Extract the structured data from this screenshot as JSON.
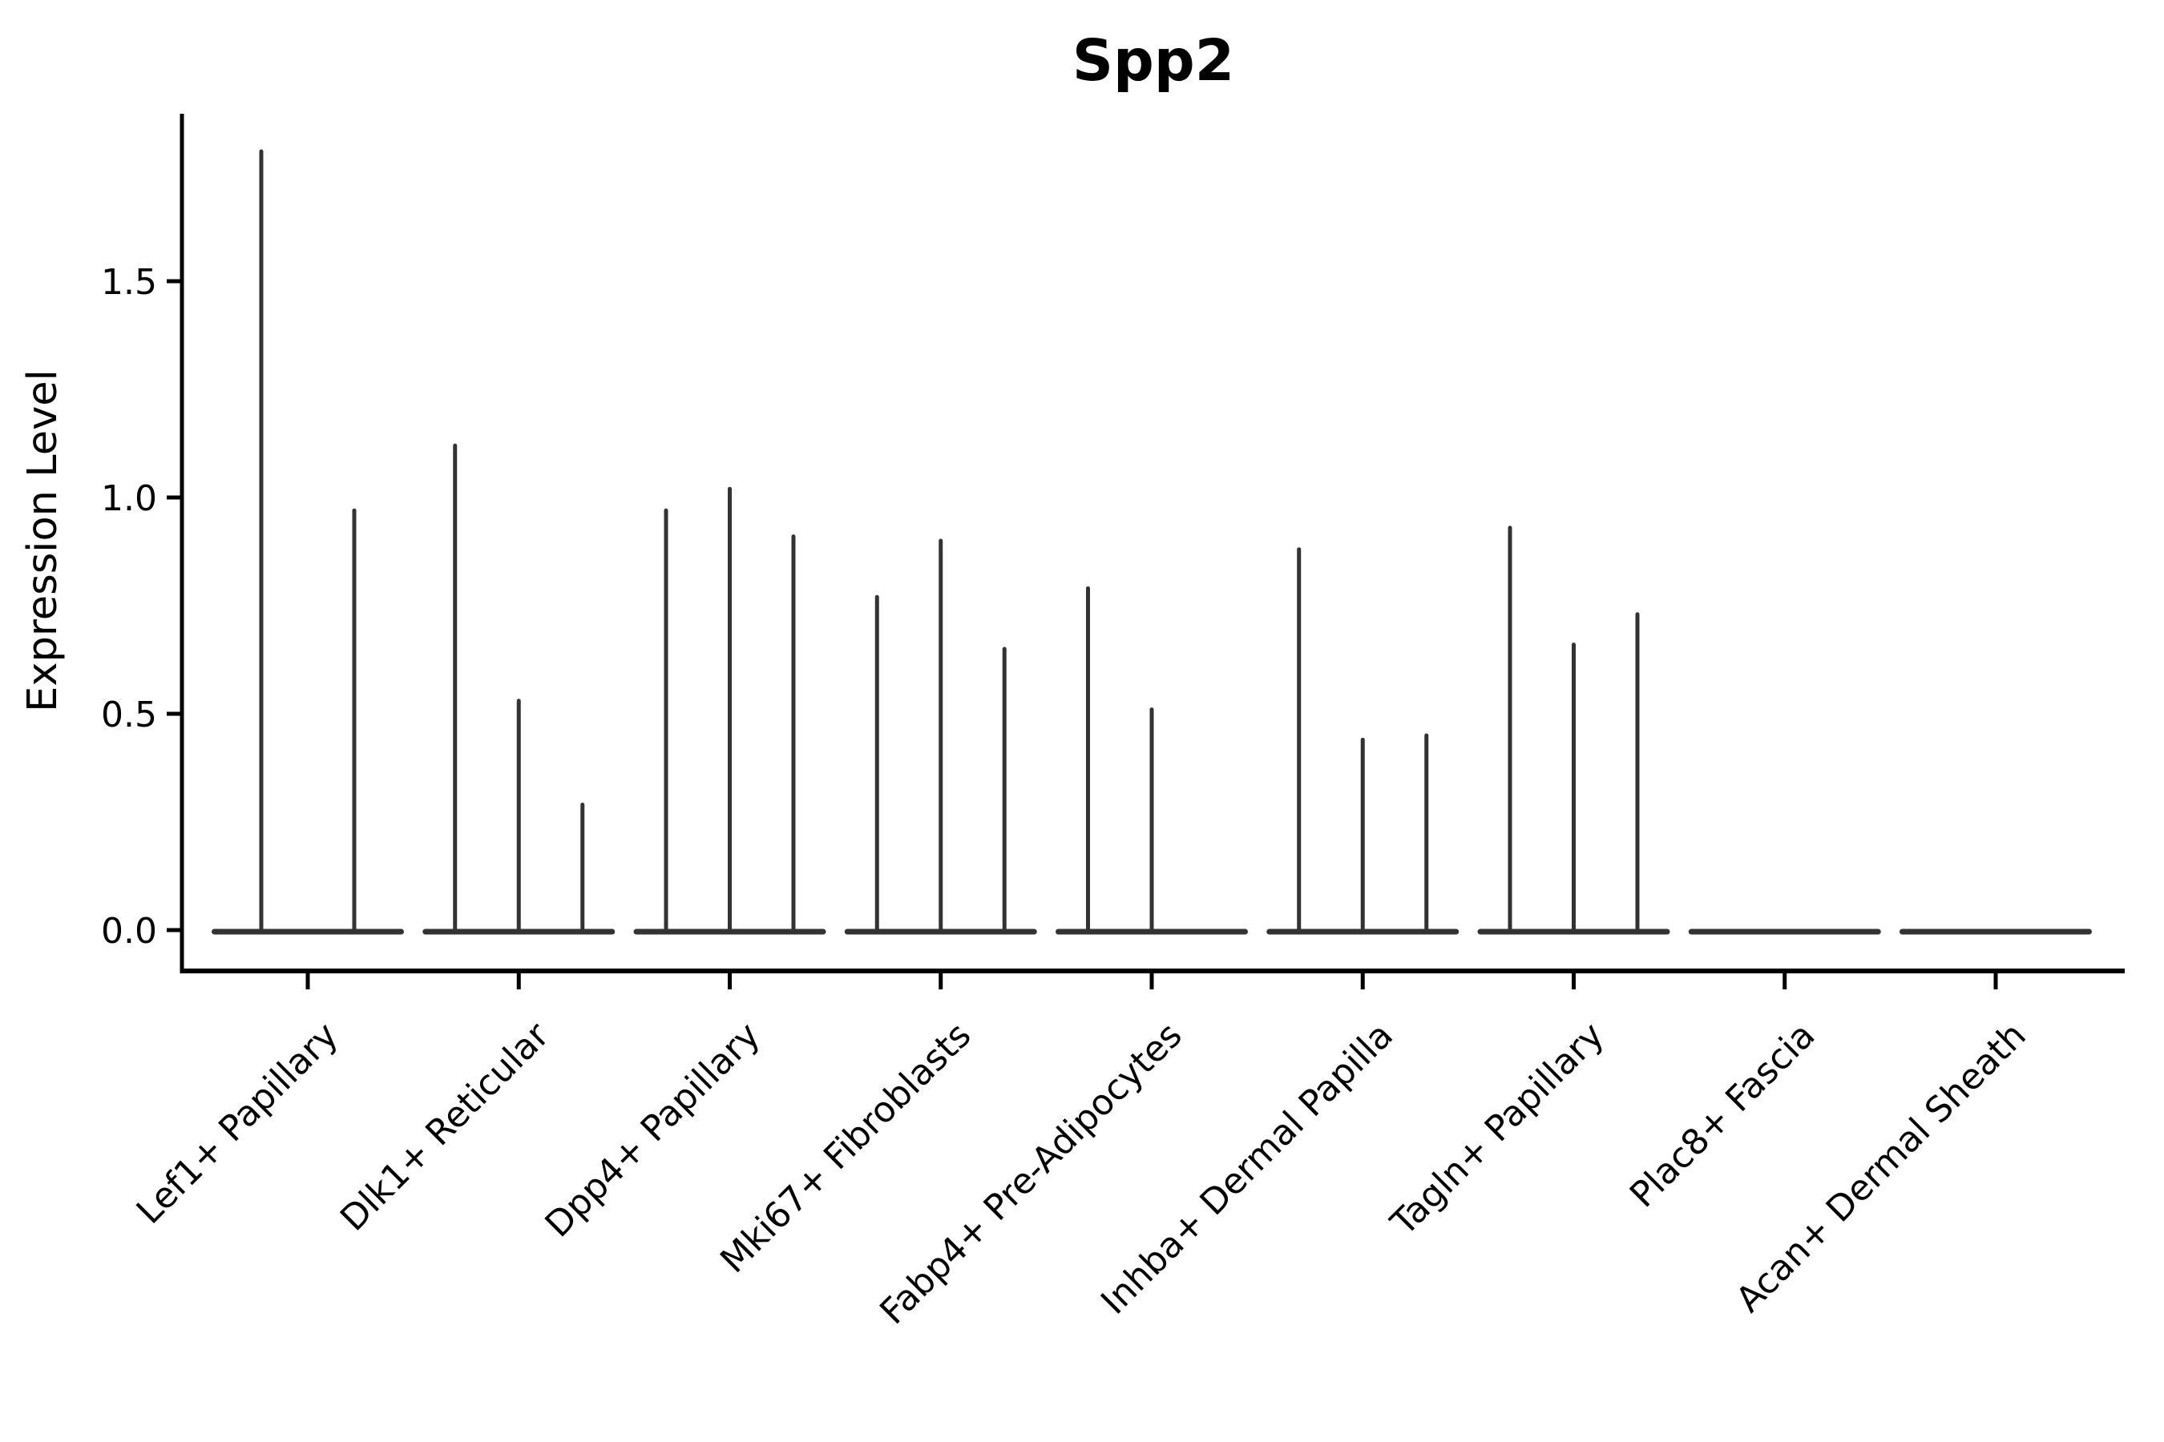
{
  "chart_data": {
    "type": "violin",
    "title": "Spp2",
    "ylabel": "Expression Level",
    "xlabel": "",
    "grid": false,
    "legend_position": "none",
    "ylim": [
      -0.09,
      1.89
    ],
    "yticks": [
      0.0,
      0.5,
      1.0,
      1.5
    ],
    "ytick_labels": [
      "0.0",
      "0.5",
      "1.0",
      "1.5"
    ],
    "categories": [
      "Lef1+ Papillary",
      "Dlk1+ Reticular",
      "Dpp4+ Papillary",
      "Mki67+ Fibroblasts",
      "Fabp4+ Pre-Adipocytes",
      "Inhba+ Dermal Papilla",
      "Tagln+ Papillary",
      "Plac8+ Fascia",
      "Acan+ Dermal Sheath"
    ],
    "groups": [
      {
        "category": "Lef1+ Papillary",
        "violin_maxima": [
          1.8,
          0.97
        ]
      },
      {
        "category": "Dlk1+ Reticular",
        "violin_maxima": [
          1.12,
          0.53,
          0.29
        ]
      },
      {
        "category": "Dpp4+ Papillary",
        "violin_maxima": [
          0.97,
          1.02,
          0.91
        ]
      },
      {
        "category": "Mki67+ Fibroblasts",
        "violin_maxima": [
          0.77,
          0.9,
          0.65
        ]
      },
      {
        "category": "Fabp4+ Pre-Adipocytes",
        "violin_maxima": [
          0.79,
          0.51,
          0.0
        ]
      },
      {
        "category": "Inhba+ Dermal Papilla",
        "violin_maxima": [
          0.88,
          0.44,
          0.45
        ]
      },
      {
        "category": "Tagln+ Papillary",
        "violin_maxima": [
          0.93,
          0.66,
          0.73
        ]
      },
      {
        "category": "Plac8+ Fascia",
        "violin_maxima": [
          0.0
        ]
      },
      {
        "category": "Acan+ Dermal Sheath",
        "violin_maxima": [
          0.0
        ]
      }
    ],
    "colors": {
      "violin": "#333333",
      "axis": "#000000",
      "text": "#000000",
      "background": "#ffffff"
    }
  }
}
